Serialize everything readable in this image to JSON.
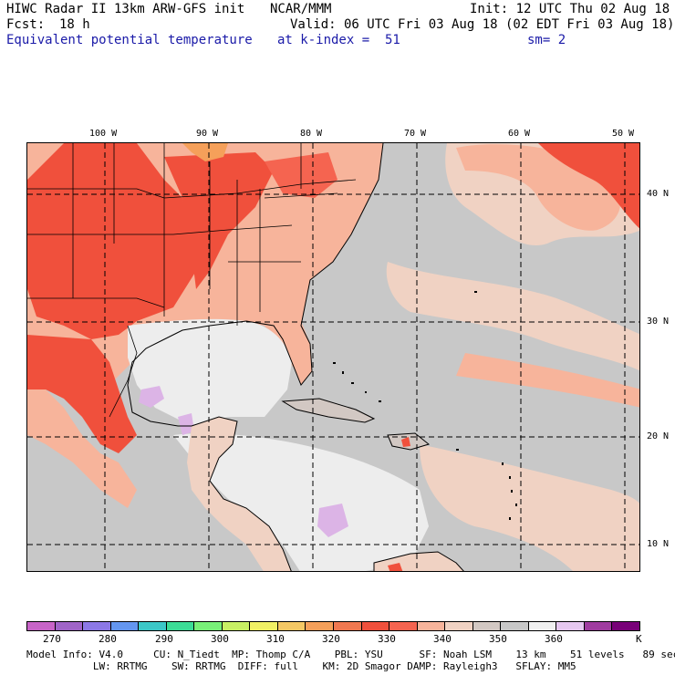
{
  "header": {
    "left1": "HIWC Radar II 13km ARW-GFS init",
    "center1": "NCAR/MMM",
    "right1": "Init: 12 UTC Thu 02 Aug 18",
    "fcst_label": "Fcst:",
    "fcst_value": "18 h",
    "valid": "Valid: 06 UTC Fri 03 Aug 18 (02 EDT Fri 03 Aug 18)",
    "field": "Equivalent potential temperature",
    "level": "at k-index =  51",
    "smooth": "sm= 2"
  },
  "map": {
    "longitudes": [
      "100 W",
      "90 W",
      "80 W",
      "70 W",
      "60 W",
      "50 W"
    ],
    "latitudes": [
      "40 N",
      "30 N",
      "20 N",
      "10 N"
    ],
    "ocean_color": "#c8c8c8",
    "land_color": "#f7b49b",
    "hot_color": "#f0503c",
    "cool_color": "#ededed",
    "purple_color": "#dcb4e6"
  },
  "colorbar": {
    "labels": [
      "270",
      "280",
      "290",
      "300",
      "310",
      "320",
      "330",
      "340",
      "350",
      "360",
      "K"
    ],
    "colors": [
      "#c864c8",
      "#a064c8",
      "#8c78e6",
      "#6496f0",
      "#3cc8c8",
      "#3cdc96",
      "#78f078",
      "#c8f064",
      "#f0f064",
      "#f5c864",
      "#f5a05a",
      "#f07850",
      "#f0503c",
      "#f56450",
      "#f7b49b",
      "#f0d2c3",
      "#d2c8c3",
      "#c8c8c8",
      "#f0f0f0",
      "#e6c8f0",
      "#a03ca0",
      "#780078"
    ]
  },
  "footer": {
    "line1": "Model Info: V4.0     CU: N_Tiedt  MP: Thomp C/A    PBL: YSU      SF: Noah LSM    13 km    51 levels   89 sec",
    "line2": "           LW: RRTMG    SW: RRTMG  DIFF: full    KM: 2D Smagor DAMP: Rayleigh3   SFLAY: MM5"
  }
}
